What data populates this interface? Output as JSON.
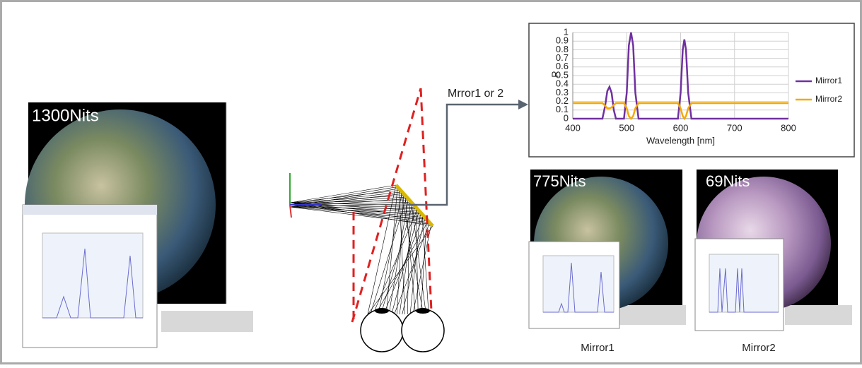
{
  "panels": [
    {
      "label": "1300Nits"
    },
    {
      "label": "775Nits",
      "caption": "Mirror1"
    },
    {
      "label": "69Nits",
      "caption": "Mirror2"
    }
  ],
  "arrow_label": "Mrror1 or 2",
  "chart": {
    "type": "line",
    "x_label": "Wavelength [nm]",
    "y_label": "R",
    "x": [
      400,
      455,
      460,
      464,
      468,
      472,
      476,
      480,
      495,
      500,
      504,
      508,
      512,
      516,
      522,
      595,
      600,
      604,
      607,
      610,
      614,
      620,
      800
    ],
    "series": [
      {
        "name": "Mirror1",
        "color": "#7030a0",
        "values": [
          0,
          0,
          0.15,
          0.32,
          0.37,
          0.3,
          0.1,
          0,
          0,
          0.3,
          0.85,
          1.0,
          0.85,
          0.3,
          0,
          0,
          0.3,
          0.8,
          0.92,
          0.8,
          0.3,
          0,
          0
        ]
      },
      {
        "name": "Mirror2",
        "color": "#f5a800",
        "values": [
          0.18,
          0.18,
          0.15,
          0.12,
          0.12,
          0.13,
          0.16,
          0.18,
          0.18,
          0.12,
          0.03,
          0,
          0.03,
          0.12,
          0.18,
          0.18,
          0.12,
          0.03,
          0,
          0.03,
          0.12,
          0.18,
          0.18
        ]
      }
    ],
    "xlim": [
      400,
      800
    ],
    "xticks": [
      400,
      500,
      600,
      700,
      800
    ],
    "ylim": [
      0,
      1
    ],
    "yticks": [
      0,
      0.1,
      0.2,
      0.3,
      0.4,
      0.5,
      0.6,
      0.7,
      0.8,
      0.9,
      1
    ],
    "grid": true
  }
}
